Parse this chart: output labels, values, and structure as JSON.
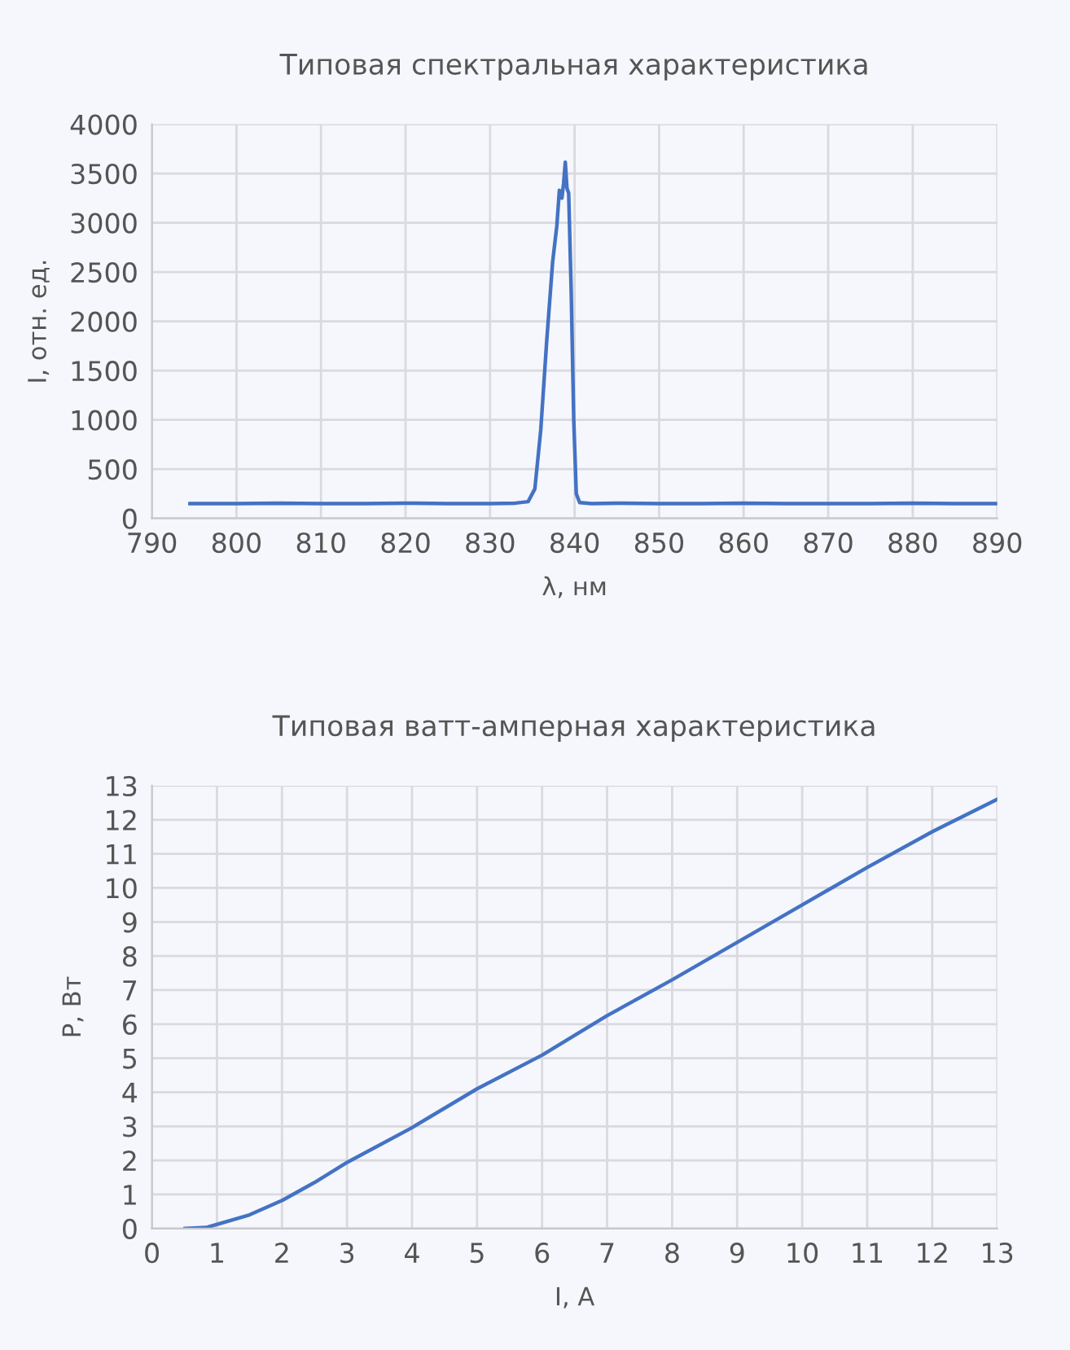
{
  "chart_data": [
    {
      "type": "line",
      "title": "Типовая спектральная характеристика",
      "xlabel": "λ, нм",
      "ylabel": "I, отн. ед.",
      "xlim": [
        790,
        890
      ],
      "xticks": [
        790,
        800,
        810,
        820,
        830,
        840,
        850,
        860,
        870,
        880,
        890
      ],
      "ylim": [
        0,
        4000
      ],
      "yticks": [
        0,
        500,
        1000,
        1500,
        2000,
        2500,
        3000,
        3500,
        4000
      ],
      "grid": true,
      "legend": false,
      "series": [
        {
          "color": "#4472c4",
          "x": [
            794.5,
            800,
            805,
            810,
            815,
            820,
            825,
            830,
            833,
            834.5,
            835.3,
            836,
            836.7,
            837.4,
            837.9,
            838.2,
            838.5,
            838.7,
            838.9,
            839.1,
            839.3,
            839.6,
            839.9,
            840.2,
            840.6,
            842,
            845,
            850,
            855,
            860,
            865,
            870,
            875,
            880,
            885,
            890
          ],
          "values": [
            150,
            150,
            155,
            150,
            150,
            155,
            150,
            150,
            155,
            170,
            300,
            900,
            1800,
            2600,
            2970,
            3330,
            3250,
            3400,
            3615,
            3350,
            3300,
            2300,
            1000,
            250,
            160,
            150,
            155,
            150,
            150,
            155,
            150,
            150,
            150,
            155,
            150,
            150
          ]
        }
      ]
    },
    {
      "type": "line",
      "title": "Типовая ватт-амперная характеристика",
      "xlabel": "I, A",
      "ylabel": "P, Вт",
      "xlim": [
        0,
        13
      ],
      "xticks": [
        0,
        1,
        2,
        3,
        4,
        5,
        6,
        7,
        8,
        9,
        10,
        11,
        12,
        13
      ],
      "ylim": [
        0,
        13
      ],
      "yticks": [
        0,
        1,
        2,
        3,
        4,
        5,
        6,
        7,
        8,
        9,
        10,
        11,
        12,
        13
      ],
      "grid": true,
      "legend": false,
      "series": [
        {
          "color": "#4472c4",
          "x": [
            0.51,
            0.84,
            1.5,
            2.01,
            2.5,
            3.01,
            3.99,
            5.0,
            6.0,
            7.0,
            8.0,
            9.0,
            10.0,
            11.0,
            12.0,
            13.0
          ],
          "values": [
            0,
            0.03,
            0.4,
            0.83,
            1.35,
            1.95,
            2.95,
            4.1,
            5.09,
            6.25,
            7.3,
            8.4,
            9.5,
            10.6,
            11.65,
            12.6
          ]
        }
      ]
    }
  ]
}
